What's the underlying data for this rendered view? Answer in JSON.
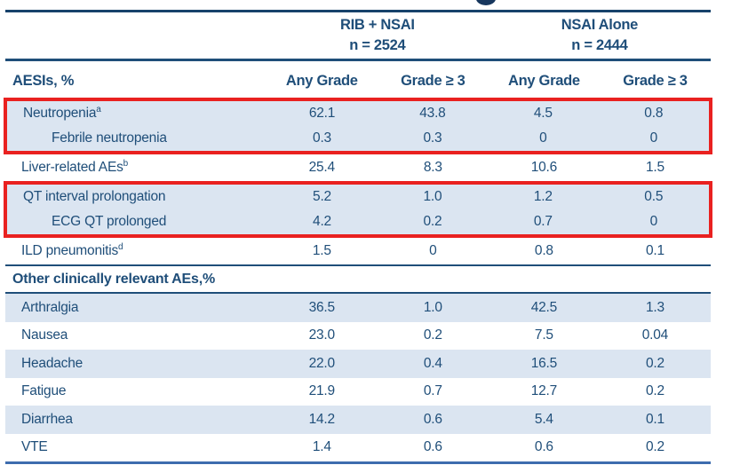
{
  "meta": {
    "cropped_title_glyph": "g",
    "description": "Adverse events of special interest table from clinical trial slide"
  },
  "colors": {
    "navy_text": "#1f4e79",
    "stripe_blue": "#dbe5f1",
    "highlight_red": "#e92120",
    "rule_dark": "#17426b",
    "rule_bottom": "#3d6cae"
  },
  "header": {
    "groups": [
      {
        "name": "RIB + NSAI",
        "n": "n = 2524"
      },
      {
        "name": "NSAI Alone",
        "n": "n = 2444"
      }
    ],
    "row_label": "AESIs, %",
    "columns": [
      "Any Grade",
      "Grade ≥ 3",
      "Any Grade",
      "Grade ≥ 3"
    ]
  },
  "section_header": "Other clinically relevant AEs,%",
  "chart_data": {
    "type": "table",
    "group_columns": [
      {
        "name": "RIB + NSAI",
        "n": 2524,
        "subcolumns": [
          "Any Grade",
          "Grade ≥ 3"
        ]
      },
      {
        "name": "NSAI Alone",
        "n": 2444,
        "subcolumns": [
          "Any Grade",
          "Grade ≥ 3"
        ]
      }
    ],
    "columns": [
      "Any Grade",
      "Grade ≥ 3",
      "Any Grade",
      "Grade ≥ 3"
    ],
    "rows": [
      {
        "label": "Neutropenia",
        "footnote": "a",
        "indent": false,
        "highlighted": true,
        "shaded": true,
        "values": [
          "62.1",
          "43.8",
          "4.5",
          "0.8"
        ]
      },
      {
        "label": "Febrile neutropenia",
        "indent": true,
        "highlighted": true,
        "shaded": true,
        "values": [
          "0.3",
          "0.3",
          "0",
          "0"
        ]
      },
      {
        "label": "Liver-related AEs",
        "footnote": "b",
        "indent": false,
        "highlighted": false,
        "shaded": false,
        "values": [
          "25.4",
          "8.3",
          "10.6",
          "1.5"
        ]
      },
      {
        "label": "QT interval prolongation",
        "indent": false,
        "highlighted": true,
        "shaded": true,
        "values": [
          "5.2",
          "1.0",
          "1.2",
          "0.5"
        ]
      },
      {
        "label": "ECG QT prolonged",
        "indent": true,
        "highlighted": true,
        "shaded": true,
        "values": [
          "4.2",
          "0.2",
          "0.7",
          "0"
        ]
      },
      {
        "label": "ILD pneumonitis",
        "footnote": "d",
        "indent": false,
        "highlighted": false,
        "shaded": false,
        "values": [
          "1.5",
          "0",
          "0.8",
          "0.1"
        ]
      },
      {
        "label": "Arthralgia",
        "indent": false,
        "highlighted": false,
        "shaded": true,
        "values": [
          "36.5",
          "1.0",
          "42.5",
          "1.3"
        ]
      },
      {
        "label": "Nausea",
        "indent": false,
        "highlighted": false,
        "shaded": false,
        "values": [
          "23.0",
          "0.2",
          "7.5",
          "0.04"
        ]
      },
      {
        "label": "Headache",
        "indent": false,
        "highlighted": false,
        "shaded": true,
        "values": [
          "22.0",
          "0.4",
          "16.5",
          "0.2"
        ]
      },
      {
        "label": "Fatigue",
        "indent": false,
        "highlighted": false,
        "shaded": false,
        "values": [
          "21.9",
          "0.7",
          "12.7",
          "0.2"
        ]
      },
      {
        "label": "Diarrhea",
        "indent": false,
        "highlighted": false,
        "shaded": true,
        "values": [
          "14.2",
          "0.6",
          "5.4",
          "0.1"
        ]
      },
      {
        "label": "VTE",
        "indent": false,
        "highlighted": false,
        "shaded": false,
        "values": [
          "1.4",
          "0.6",
          "0.6",
          "0.2"
        ]
      }
    ]
  }
}
